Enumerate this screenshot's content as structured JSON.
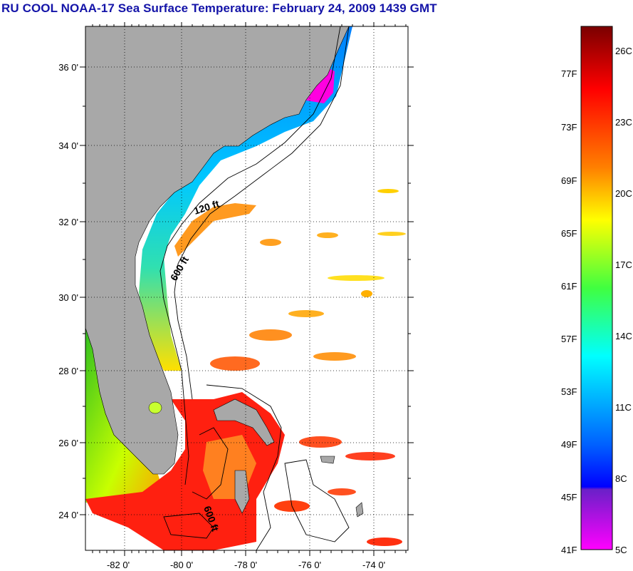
{
  "title": "RU COOL  NOAA-17  Sea Surface Temperature:  February 24, 2009 1439 GMT",
  "latitude_labels": [
    "36 0'",
    "34 0'",
    "32 0'",
    "30 0'",
    "28 0'",
    "26 0'",
    "24 0'"
  ],
  "longitude_labels": [
    "-82 0'",
    "-80 0'",
    "-78 0'",
    "-76 0'",
    "-74 0'"
  ],
  "contour_labels": [
    "120 ft",
    "600 ft",
    "600 ft"
  ],
  "colorbar": {
    "fahrenheit_labels": [
      "77F",
      "73F",
      "69F",
      "65F",
      "61F",
      "57F",
      "53F",
      "49F",
      "45F",
      "41F"
    ],
    "celsius_labels": [
      "26C",
      "23C",
      "20C",
      "17C",
      "14C",
      "11C",
      "8C",
      "5C"
    ],
    "colors": [
      "#7a0000",
      "#ff0000",
      "#ff8000",
      "#ffff00",
      "#00ff00",
      "#00ffff",
      "#0000ff",
      "#ff00ff"
    ]
  },
  "colors": {
    "land": "#a8a8a8",
    "ocean": "#ffffff",
    "title": "#1414a8"
  }
}
